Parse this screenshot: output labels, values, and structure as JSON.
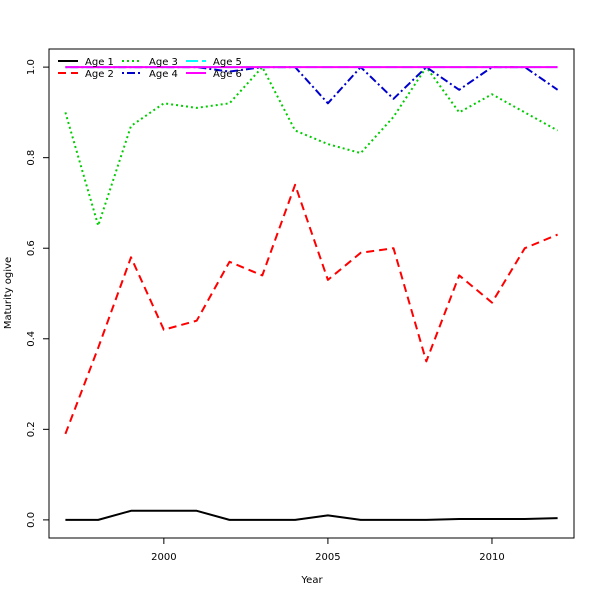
{
  "chart_data": {
    "type": "line",
    "xlabel": "Year",
    "ylabel": "Maturity ogive",
    "xlim": [
      1996.5,
      2012.5
    ],
    "ylim": [
      -0.04,
      1.04
    ],
    "x_ticks": [
      2000,
      2005,
      2010
    ],
    "y_ticks": [
      0.0,
      0.2,
      0.4,
      0.6,
      0.8,
      1.0
    ],
    "grid": false,
    "legend_position": "top-left",
    "x": [
      1997,
      1998,
      1999,
      2000,
      2001,
      2002,
      2003,
      2004,
      2005,
      2006,
      2007,
      2008,
      2009,
      2010,
      2011,
      2012
    ],
    "series": [
      {
        "name": "Age 1",
        "color": "#000000",
        "dash": "solid",
        "values": [
          0.0,
          0.0,
          0.02,
          0.02,
          0.02,
          0.0,
          0.0,
          0.0,
          0.01,
          0.0,
          0.0,
          0.0,
          0.002,
          0.002,
          0.002,
          0.004
        ]
      },
      {
        "name": "Age 2",
        "color": "#ff0000",
        "dash": "dashed",
        "values": [
          0.19,
          0.38,
          0.58,
          0.42,
          0.44,
          0.57,
          0.54,
          0.74,
          0.53,
          0.59,
          0.6,
          0.35,
          0.54,
          0.48,
          0.6,
          0.63
        ]
      },
      {
        "name": "Age 3",
        "color": "#00cd00",
        "dash": "dotted",
        "values": [
          0.9,
          0.65,
          0.87,
          0.92,
          0.91,
          0.92,
          1.0,
          0.86,
          0.83,
          0.81,
          0.89,
          1.0,
          0.9,
          0.94,
          0.9,
          0.86
        ]
      },
      {
        "name": "Age 4",
        "color": "#0000cd",
        "dash": "dotdash",
        "values": [
          1.0,
          1.0,
          1.0,
          1.0,
          1.0,
          0.99,
          1.0,
          1.0,
          0.92,
          1.0,
          0.93,
          1.0,
          0.95,
          1.0,
          1.0,
          0.95
        ]
      },
      {
        "name": "Age 5",
        "color": "#00ffff",
        "dash": "longdash",
        "values": [
          1.0,
          1.0,
          1.0,
          1.0,
          1.0,
          1.0,
          1.0,
          1.0,
          1.0,
          1.0,
          1.0,
          1.0,
          1.0,
          1.0,
          1.0,
          1.0
        ]
      },
      {
        "name": "Age 6",
        "color": "#ff00ff",
        "dash": "solid",
        "values": [
          1.0,
          1.0,
          1.0,
          1.0,
          1.0,
          1.0,
          1.0,
          1.0,
          1.0,
          1.0,
          1.0,
          1.0,
          1.0,
          1.0,
          1.0,
          1.0
        ]
      }
    ]
  }
}
